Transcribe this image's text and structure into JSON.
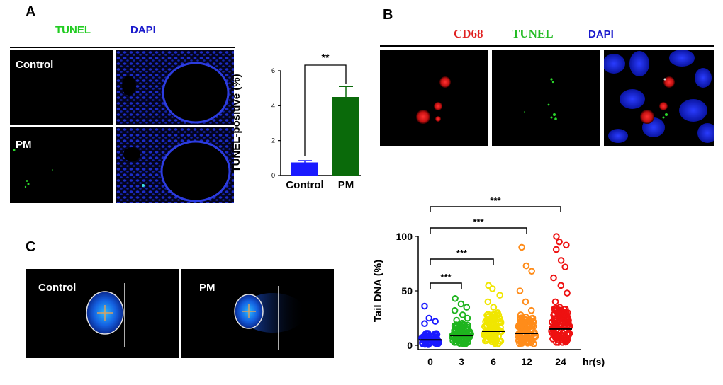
{
  "panelA": {
    "letter": "A",
    "channels": [
      {
        "label": "TUNEL",
        "color": "#22cc22"
      },
      {
        "label": "DAPI",
        "color": "#1a1acc"
      }
    ],
    "rows": [
      {
        "label": "Control"
      },
      {
        "label": "PM"
      }
    ]
  },
  "panelB": {
    "letter": "B",
    "channels": [
      {
        "label": "CD68",
        "color": "#e02020"
      },
      {
        "label": "TUNEL",
        "color": "#22bb22"
      },
      {
        "label": "DAPI",
        "color": "#1a1acc"
      }
    ]
  },
  "panelC": {
    "letter": "C",
    "images": [
      {
        "label": "Control"
      },
      {
        "label": "PM"
      }
    ]
  },
  "chart_data": [
    {
      "type": "bar",
      "categories": [
        "Control",
        "PM"
      ],
      "values": [
        0.75,
        4.5
      ],
      "errors": [
        0.1,
        0.6
      ],
      "colors": [
        "#1a1aff",
        "#0a6a0a"
      ],
      "ylabel": "TUNEL-positive (%)",
      "ylim": [
        0,
        6
      ],
      "yticks": [
        "0",
        "2",
        "4",
        "6"
      ],
      "significance": "**"
    },
    {
      "type": "scatter",
      "categories": [
        "0",
        "3",
        "6",
        "12",
        "24"
      ],
      "xlabel": "hr(s)",
      "ylabel": "Tail DNA (%)",
      "ylim": [
        0,
        100
      ],
      "yticks": [
        "0",
        "50",
        "100"
      ],
      "medians": [
        5,
        9,
        13,
        11,
        15
      ],
      "colors": [
        "#1a1aff",
        "#1eb41e",
        "#f0e600",
        "#ff8c1a",
        "#ee1111"
      ],
      "outliers": [
        [
          36,
          25,
          22,
          20
        ],
        [
          43,
          38,
          35,
          32,
          28,
          25,
          23
        ],
        [
          55,
          52,
          46,
          40,
          35,
          28,
          24
        ],
        [
          90,
          73,
          68,
          50,
          40,
          32,
          28,
          26
        ],
        [
          100,
          95,
          92,
          88,
          78,
          72,
          62,
          55,
          48,
          40,
          35,
          30
        ]
      ],
      "significance": [
        {
          "from": "0",
          "to": "3",
          "label": "***"
        },
        {
          "from": "0",
          "to": "6",
          "label": "***"
        },
        {
          "from": "0",
          "to": "12",
          "label": "***"
        },
        {
          "from": "0",
          "to": "24",
          "label": "***"
        }
      ]
    }
  ]
}
